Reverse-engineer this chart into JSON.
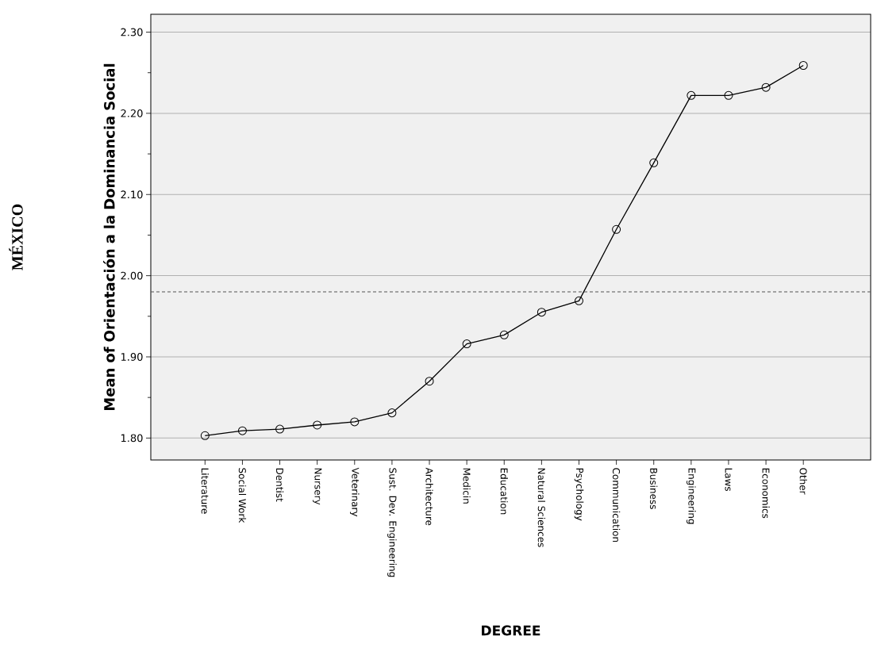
{
  "chart_data": {
    "type": "line",
    "xlabel": "DEGREE",
    "ylabel": "Mean of Orientación a la Dominancia Social",
    "annotations": [
      "MÉXICO"
    ],
    "categories": [
      "Literature",
      "Social Work",
      "Dentist",
      "Nursery",
      "Veterinary",
      "Sust. Dev. Engineering",
      "Architecture",
      "Medicin",
      "Education",
      "Natural Sciences",
      "Psychology",
      "Communication",
      "Business",
      "Engineering",
      "Laws",
      "Economics",
      "Other"
    ],
    "series": [
      {
        "color": "#000000",
        "values": [
          1.803,
          1.809,
          1.811,
          1.816,
          1.82,
          1.831,
          1.87,
          1.916,
          1.927,
          1.955,
          1.969,
          2.057,
          2.139,
          2.222,
          2.222,
          2.232,
          2.259
        ]
      }
    ],
    "ylim": [
      1.773,
      2.322
    ],
    "yticks": [
      {
        "value": 1.8,
        "label": "1.80"
      },
      {
        "value": 1.9,
        "label": "1.90"
      },
      {
        "value": 2.0,
        "label": "2.00"
      },
      {
        "value": 2.1,
        "label": "2.10"
      },
      {
        "value": 2.2,
        "label": "2.20"
      },
      {
        "value": 2.3,
        "label": "2.30"
      }
    ],
    "grid": "y",
    "marker": "circle",
    "line_style": "solid",
    "ref_lines": [
      {
        "axis": "y",
        "value": 1.98,
        "color": "#555555",
        "line_style": "dashed"
      }
    ]
  }
}
